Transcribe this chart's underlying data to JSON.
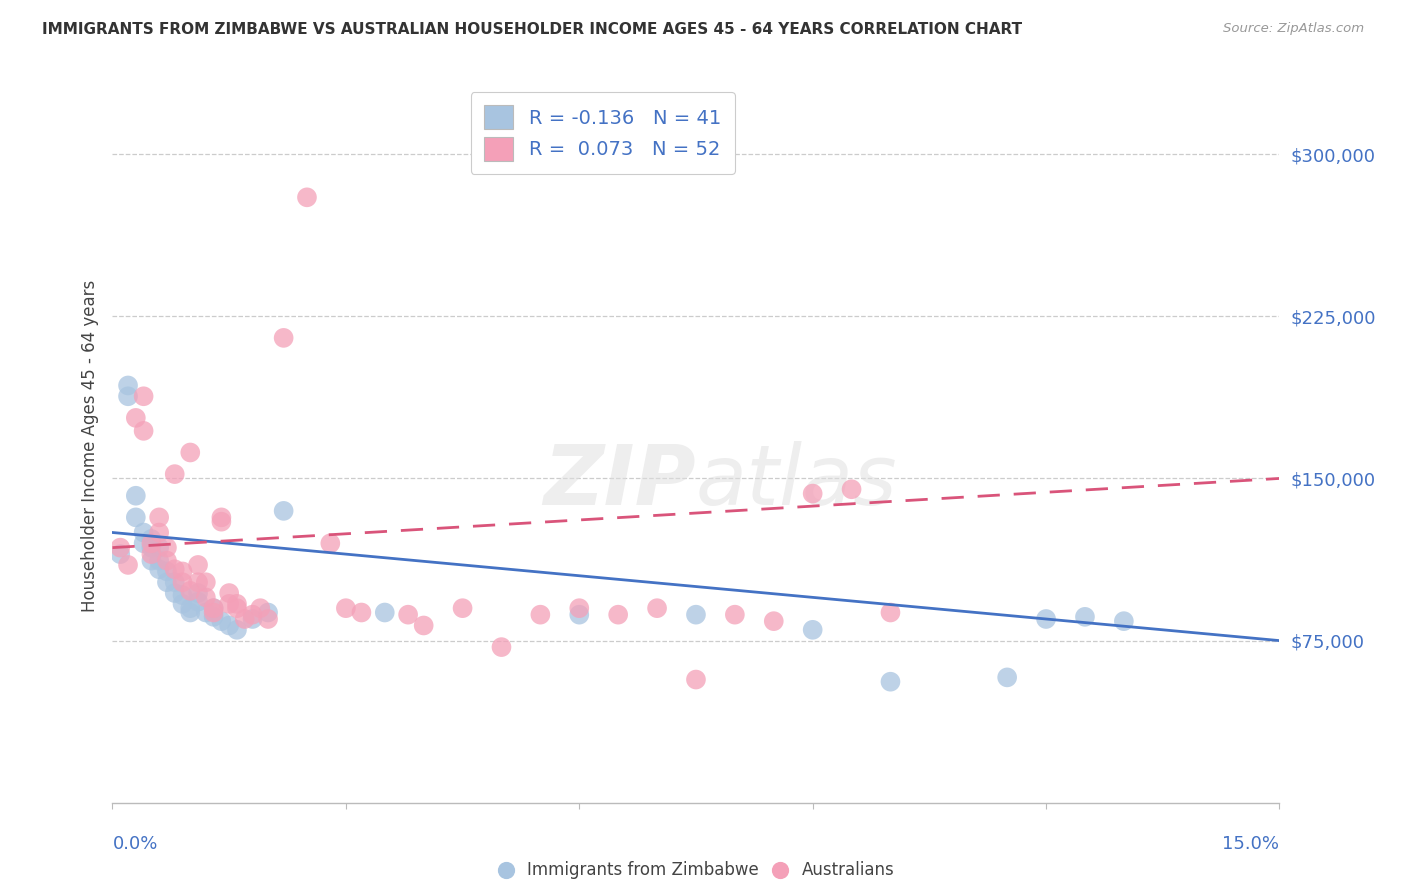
{
  "title": "IMMIGRANTS FROM ZIMBABWE VS AUSTRALIAN HOUSEHOLDER INCOME AGES 45 - 64 YEARS CORRELATION CHART",
  "source": "Source: ZipAtlas.com",
  "ylabel": "Householder Income Ages 45 - 64 years",
  "legend_labels": [
    "Immigrants from Zimbabwe",
    "Australians"
  ],
  "legend_R": [
    -0.136,
    0.073
  ],
  "legend_N": [
    41,
    52
  ],
  "blue_color": "#a8c4e0",
  "pink_color": "#f4a0b8",
  "blue_line_color": "#4472c4",
  "pink_line_color": "#d9547a",
  "ytick_labels": [
    "$75,000",
    "$150,000",
    "$225,000",
    "$300,000"
  ],
  "ytick_values": [
    75000,
    150000,
    225000,
    300000
  ],
  "ymin": 0,
  "ymax": 330000,
  "xmin": 0.0,
  "xmax": 0.15,
  "watermark_zip": "ZIP",
  "watermark_atlas": "atlas",
  "blue_scatter_x": [
    0.001,
    0.002,
    0.002,
    0.003,
    0.003,
    0.004,
    0.004,
    0.005,
    0.005,
    0.005,
    0.006,
    0.006,
    0.006,
    0.007,
    0.007,
    0.008,
    0.008,
    0.009,
    0.009,
    0.01,
    0.01,
    0.011,
    0.011,
    0.012,
    0.013,
    0.013,
    0.014,
    0.015,
    0.016,
    0.018,
    0.02,
    0.022,
    0.035,
    0.06,
    0.075,
    0.09,
    0.1,
    0.115,
    0.12,
    0.125,
    0.13
  ],
  "blue_scatter_y": [
    115000,
    188000,
    193000,
    132000,
    142000,
    120000,
    125000,
    112000,
    118000,
    122000,
    108000,
    112000,
    118000,
    102000,
    107000,
    97000,
    102000,
    92000,
    96000,
    88000,
    90000,
    93000,
    97000,
    88000,
    86000,
    90000,
    84000,
    82000,
    80000,
    85000,
    88000,
    135000,
    88000,
    87000,
    87000,
    80000,
    56000,
    58000,
    85000,
    86000,
    84000
  ],
  "pink_scatter_x": [
    0.001,
    0.002,
    0.003,
    0.004,
    0.004,
    0.005,
    0.005,
    0.006,
    0.006,
    0.007,
    0.007,
    0.008,
    0.008,
    0.009,
    0.009,
    0.01,
    0.01,
    0.011,
    0.011,
    0.012,
    0.012,
    0.013,
    0.013,
    0.014,
    0.014,
    0.015,
    0.015,
    0.016,
    0.016,
    0.017,
    0.018,
    0.019,
    0.02,
    0.022,
    0.025,
    0.028,
    0.03,
    0.032,
    0.038,
    0.04,
    0.045,
    0.05,
    0.055,
    0.06,
    0.065,
    0.07,
    0.075,
    0.08,
    0.085,
    0.09,
    0.095,
    0.1
  ],
  "pink_scatter_y": [
    118000,
    110000,
    178000,
    172000,
    188000,
    115000,
    120000,
    125000,
    132000,
    112000,
    118000,
    108000,
    152000,
    102000,
    107000,
    98000,
    162000,
    102000,
    110000,
    95000,
    102000,
    88000,
    90000,
    132000,
    130000,
    92000,
    97000,
    90000,
    92000,
    85000,
    87000,
    90000,
    85000,
    215000,
    280000,
    120000,
    90000,
    88000,
    87000,
    82000,
    90000,
    72000,
    87000,
    90000,
    87000,
    90000,
    57000,
    87000,
    84000,
    143000,
    145000,
    88000
  ]
}
